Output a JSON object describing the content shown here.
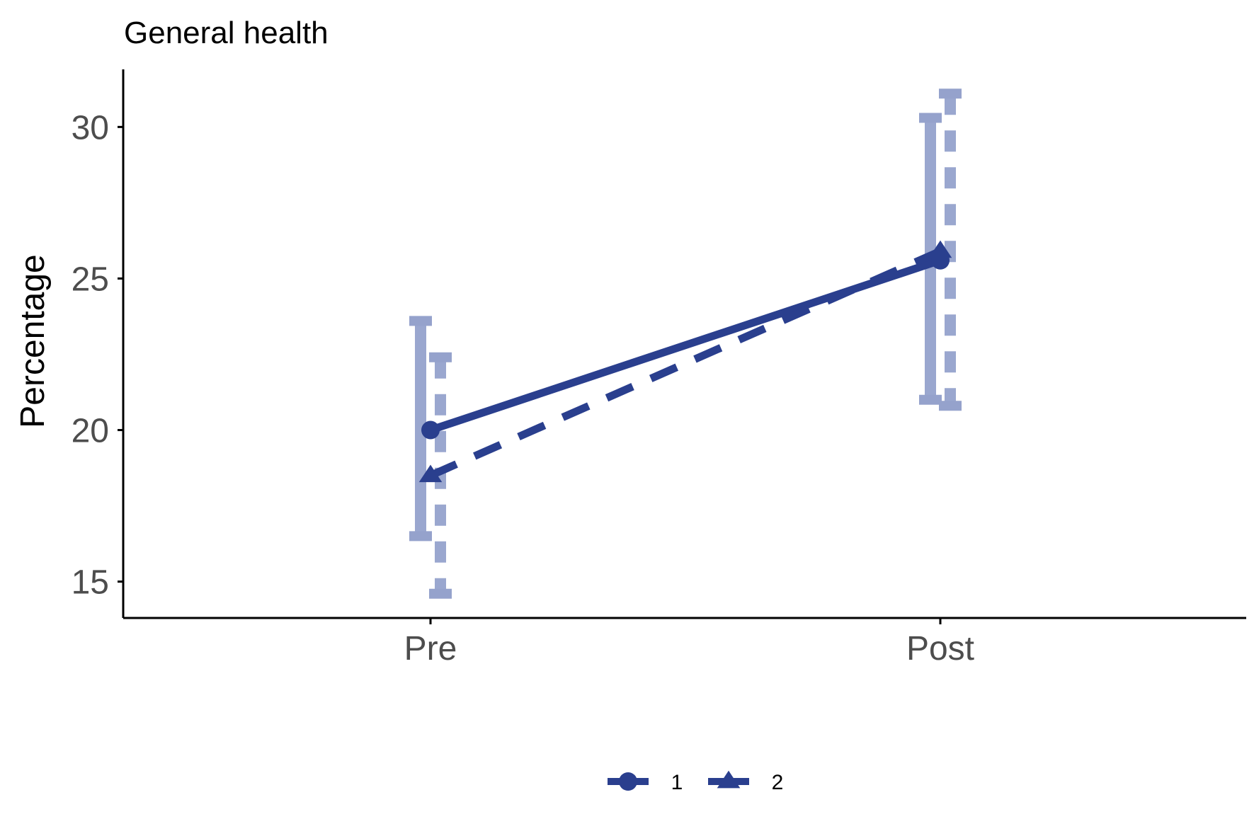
{
  "chart_data": {
    "type": "line",
    "title": "General health",
    "xlabel": "",
    "ylabel": "Percentage",
    "categories": [
      "Pre",
      "Post"
    ],
    "ylim": [
      13.8,
      31.9
    ],
    "yticks": [
      15,
      20,
      25,
      30
    ],
    "grid": false,
    "legend_position": "bottom",
    "color": "#2a3f8e",
    "errorbar_color": "#95a2cc",
    "series": [
      {
        "name": "1",
        "marker": "circle",
        "linestyle": "solid",
        "values": [
          20.0,
          25.6
        ],
        "lower": [
          16.5,
          21.0
        ],
        "upper": [
          23.6,
          30.3
        ]
      },
      {
        "name": "2",
        "marker": "triangle",
        "linestyle": "dashed",
        "values": [
          18.5,
          25.9
        ],
        "lower": [
          14.6,
          20.8
        ],
        "upper": [
          22.4,
          31.1
        ]
      }
    ]
  }
}
